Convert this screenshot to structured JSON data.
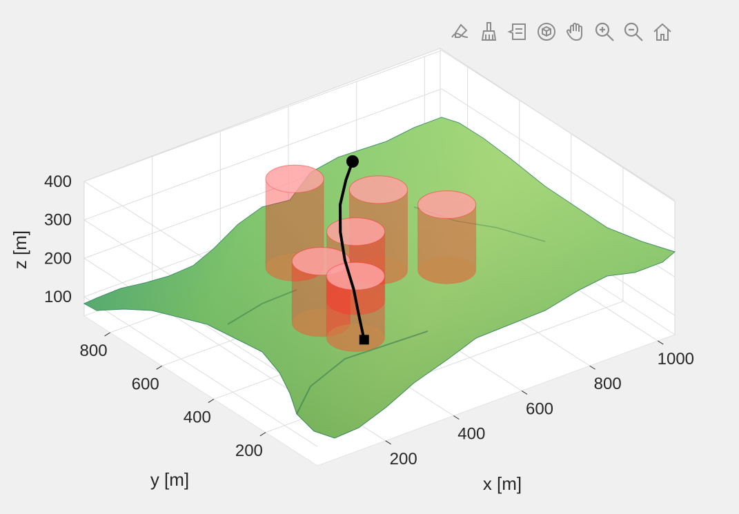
{
  "toolbar": {
    "buttons": [
      {
        "name": "edit-plot-icon"
      },
      {
        "name": "brush-icon"
      },
      {
        "name": "data-tips-icon"
      },
      {
        "name": "rotate-3d-icon"
      },
      {
        "name": "pan-icon"
      },
      {
        "name": "zoom-in-icon"
      },
      {
        "name": "zoom-out-icon"
      },
      {
        "name": "home-icon"
      }
    ]
  },
  "chart_data": {
    "type": "surface3d",
    "title": "",
    "xlabel": "x [m]",
    "ylabel": "y [m]",
    "zlabel": "z [m]",
    "xlim": [
      0,
      1050
    ],
    "ylim": [
      0,
      900
    ],
    "zlim": [
      50,
      400
    ],
    "xticks": [
      200,
      400,
      600,
      800,
      1000
    ],
    "yticks": [
      200,
      400,
      600,
      800
    ],
    "zticks": [
      100,
      200,
      300,
      400
    ],
    "grid": true,
    "colors": {
      "terrain_low": "#1f8a70",
      "terrain_high": "#a8dc6a",
      "obstacle": "#ff2a2a",
      "path": "#000000"
    },
    "obstacles": [
      {
        "x": 390,
        "y": 600,
        "z_base": 180,
        "height": 230,
        "radius": 55
      },
      {
        "x": 560,
        "y": 500,
        "z_base": 160,
        "height": 210,
        "radius": 55
      },
      {
        "x": 440,
        "y": 430,
        "z_base": 150,
        "height": 180,
        "radius": 55
      },
      {
        "x": 300,
        "y": 380,
        "z_base": 160,
        "height": 160,
        "radius": 55
      },
      {
        "x": 310,
        "y": 260,
        "z_base": 170,
        "height": 160,
        "radius": 55
      },
      {
        "x": 700,
        "y": 420,
        "z_base": 150,
        "height": 170,
        "radius": 55
      }
    ],
    "path": {
      "start": [
        320,
        240,
        170
      ],
      "end": [
        560,
        600,
        400
      ],
      "points": [
        [
          320,
          240,
          170
        ],
        [
          325,
          265,
          215
        ],
        [
          335,
          300,
          270
        ],
        [
          370,
          380,
          300
        ],
        [
          410,
          450,
          330
        ],
        [
          455,
          510,
          360
        ],
        [
          510,
          560,
          385
        ],
        [
          560,
          600,
          400
        ]
      ],
      "start_marker": "square",
      "end_marker": "circle"
    }
  }
}
